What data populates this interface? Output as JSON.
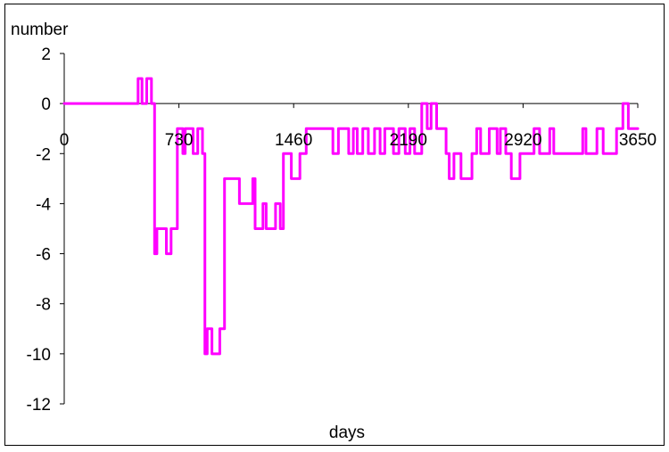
{
  "chart_data": {
    "type": "line",
    "title": "",
    "xlabel": "days",
    "ylabel": "number",
    "xlim": [
      0,
      3650
    ],
    "ylim": [
      -12,
      2
    ],
    "x_ticks": [
      0,
      730,
      1460,
      2190,
      2920,
      3650
    ],
    "y_ticks": [
      2,
      0,
      -2,
      -4,
      -6,
      -8,
      -10,
      -12
    ],
    "grid": false,
    "legend": "none",
    "series_color": "#ff00ff",
    "x": [
      0,
      470,
      470,
      495,
      495,
      525,
      525,
      555,
      555,
      575,
      575,
      590,
      590,
      650,
      650,
      680,
      680,
      710,
      710,
      720,
      720,
      755,
      755,
      770,
      770,
      780,
      780,
      820,
      820,
      850,
      850,
      880,
      880,
      895,
      895,
      910,
      910,
      940,
      940,
      990,
      990,
      1020,
      1020,
      1115,
      1115,
      1200,
      1200,
      1215,
      1215,
      1265,
      1265,
      1285,
      1285,
      1345,
      1345,
      1375,
      1375,
      1395,
      1395,
      1445,
      1445,
      1500,
      1500,
      1540,
      1540,
      1710,
      1710,
      1745,
      1745,
      1810,
      1810,
      1840,
      1840,
      1865,
      1865,
      1900,
      1900,
      1935,
      1935,
      1975,
      1975,
      2010,
      2010,
      2040,
      2040,
      2095,
      2095,
      2130,
      2130,
      2170,
      2170,
      2200,
      2200,
      2230,
      2230,
      2275,
      2275,
      2310,
      2310,
      2335,
      2335,
      2370,
      2370,
      2430,
      2430,
      2450,
      2450,
      2480,
      2480,
      2525,
      2525,
      2595,
      2595,
      2625,
      2625,
      2650,
      2650,
      2705,
      2705,
      2755,
      2755,
      2775,
      2775,
      2810,
      2810,
      2845,
      2845,
      2900,
      2900,
      2990,
      2990,
      3025,
      3025,
      3090,
      3090,
      3115,
      3115,
      3300,
      3300,
      3320,
      3320,
      3390,
      3390,
      3430,
      3430,
      3515,
      3515,
      3555,
      3555,
      3590,
      3590,
      3650
    ],
    "y": [
      0,
      0,
      1,
      1,
      0,
      0,
      1,
      1,
      0,
      0,
      -6,
      -6,
      -5,
      -5,
      -6,
      -6,
      -5,
      -5,
      -5,
      -5,
      -1,
      -1,
      -2,
      -2,
      -1,
      -1,
      -1,
      -1,
      -2,
      -2,
      -1,
      -1,
      -2,
      -2,
      -10,
      -10,
      -9,
      -9,
      -10,
      -10,
      -9,
      -9,
      -3,
      -3,
      -4,
      -4,
      -3,
      -3,
      -5,
      -5,
      -4,
      -4,
      -5,
      -5,
      -4,
      -4,
      -5,
      -5,
      -2,
      -2,
      -3,
      -3,
      -2,
      -2,
      -1,
      -1,
      -2,
      -2,
      -1,
      -1,
      -2,
      -2,
      -1,
      -1,
      -2,
      -2,
      -1,
      -1,
      -2,
      -2,
      -1,
      -1,
      -2,
      -2,
      -1,
      -1,
      -2,
      -2,
      -1,
      -1,
      -2,
      -2,
      -1,
      -1,
      -2,
      -2,
      0,
      0,
      -1,
      -1,
      0,
      0,
      -1,
      -1,
      -2,
      -2,
      -3,
      -3,
      -2,
      -2,
      -3,
      -3,
      -2,
      -2,
      -1,
      -1,
      -2,
      -2,
      -1,
      -1,
      -2,
      -2,
      -1,
      -1,
      -2,
      -2,
      -3,
      -3,
      -2,
      -2,
      -1,
      -1,
      -2,
      -2,
      -1,
      -1,
      -2,
      -2,
      -1,
      -1,
      -2,
      -2,
      -1,
      -1,
      -2,
      -2,
      -1,
      -1,
      0,
      0,
      -1,
      -1
    ]
  }
}
